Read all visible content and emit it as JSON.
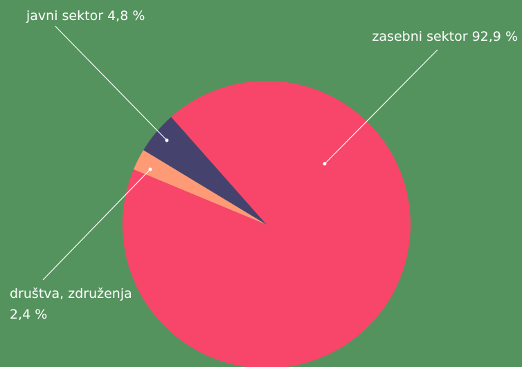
{
  "chart_data": {
    "type": "pie",
    "categories": [
      "zasebni sektor",
      "društva, združenja",
      "javni sektor"
    ],
    "values": [
      92.9,
      2.4,
      4.8
    ],
    "value_labels": [
      "92,9 %",
      "2,4 %",
      "4,8 %"
    ],
    "colors": [
      "#f8456a",
      "#ff9a76",
      "#45436e"
    ]
  }
}
